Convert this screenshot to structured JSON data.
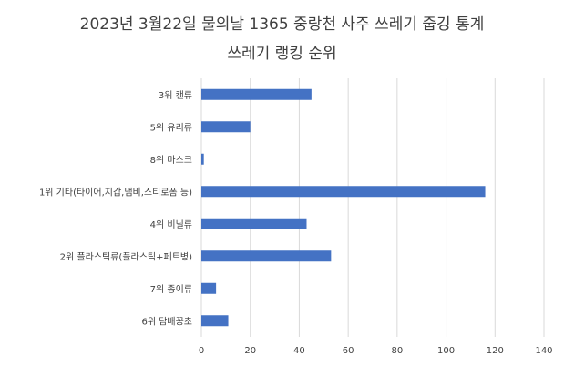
{
  "chart_data": {
    "type": "bar",
    "orientation": "horizontal",
    "title": "2023년 3월22일 물의날 1365 중랑천 사주 쓰레기 줍깅 통계",
    "subtitle": "쓰레기 랭킹 순위",
    "categories": [
      "3위 캔류",
      "5위 유리류",
      "8위 마스크",
      "1위 기타(타이어,지갑,냄비,스티로폼 등)",
      "4위 비닐류",
      "2위 플라스틱류(플라스틱+페트병)",
      "7위 종이류",
      "6위 담배꽁초"
    ],
    "values": [
      45,
      20,
      1,
      116,
      43,
      53,
      6,
      11
    ],
    "xlim": [
      0,
      140
    ],
    "xticks": [
      0,
      20,
      40,
      60,
      80,
      100,
      120,
      140
    ],
    "grid": "vertical",
    "bar_color": "#4472c4",
    "grid_color": "#d9d9d9"
  }
}
